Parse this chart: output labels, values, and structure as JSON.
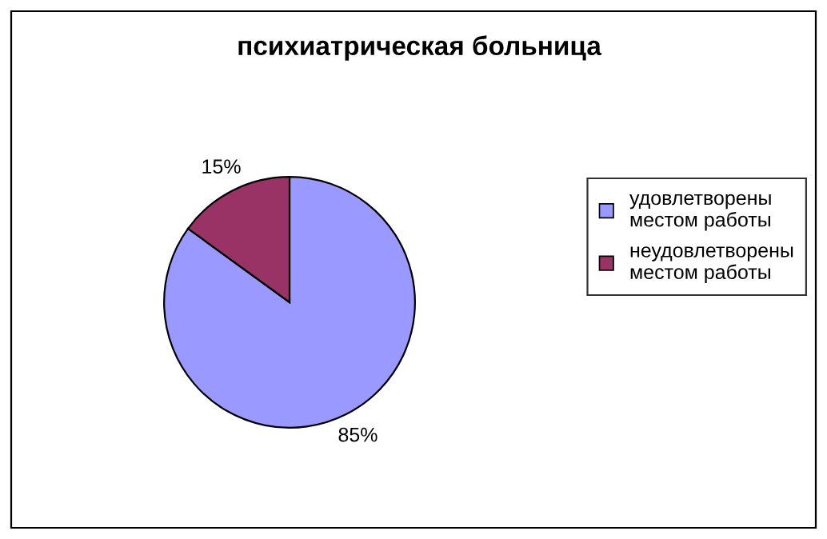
{
  "chart_data": {
    "type": "pie",
    "title": "психиатрическая больница",
    "categories": [
      "удовлетворены местом работы",
      "неудовлетворены местом работы"
    ],
    "values": [
      85,
      15
    ],
    "colors": [
      "#9999ff",
      "#993366"
    ],
    "value_labels": [
      "85%",
      "15%"
    ],
    "legend": "right"
  }
}
